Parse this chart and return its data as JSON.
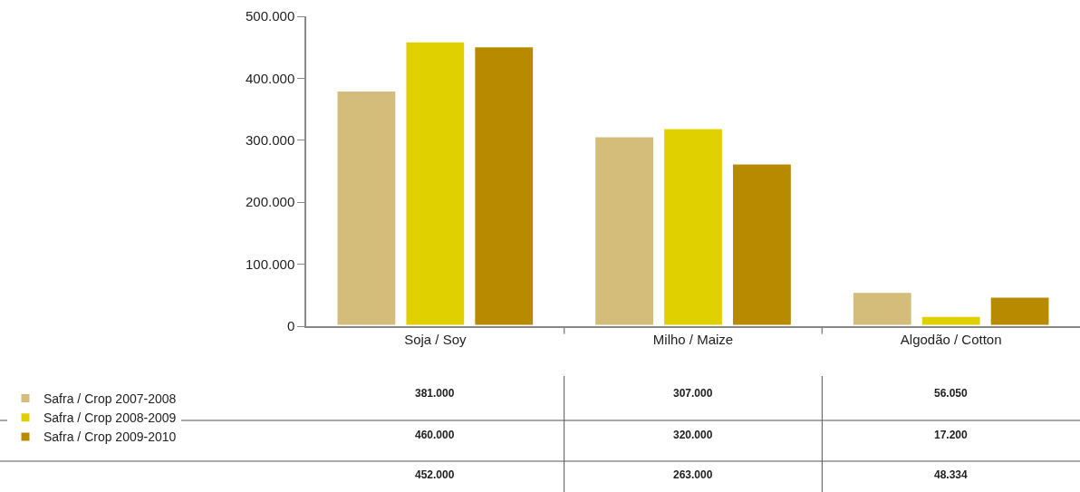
{
  "chart_data": {
    "type": "bar",
    "categories": [
      "Soja / Soy",
      "Milho / Maize",
      "Algodão / Cotton"
    ],
    "series": [
      {
        "name": "Safra / Crop 2007-2008",
        "color": "#d4bd7a",
        "values": [
          381000,
          307000,
          56050
        ],
        "value_labels": [
          "381.000",
          "307.000",
          "56.050"
        ]
      },
      {
        "name": "Safra / Crop 2008-2009",
        "color": "#e0d000",
        "values": [
          460000,
          320000,
          17200
        ],
        "value_labels": [
          "460.000",
          "320.000",
          "17.200"
        ]
      },
      {
        "name": "Safra / Crop 2009-2010",
        "color": "#b88a00",
        "values": [
          452000,
          263000,
          48334
        ],
        "value_labels": [
          "452.000",
          "263.000",
          "48.334"
        ]
      }
    ],
    "ylim": [
      0,
      500000
    ],
    "yticks": [
      {
        "value": 0,
        "label": "0"
      },
      {
        "value": 100000,
        "label": "100.000"
      },
      {
        "value": 200000,
        "label": "200.000"
      },
      {
        "value": 300000,
        "label": "300.000"
      },
      {
        "value": 400000,
        "label": "400.000"
      },
      {
        "value": 500000,
        "label": "500.000"
      }
    ],
    "legend": "bottom left"
  }
}
